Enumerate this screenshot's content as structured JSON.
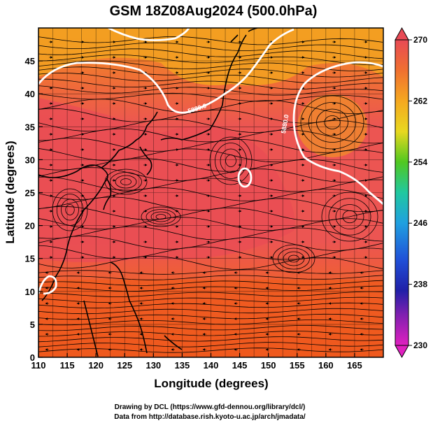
{
  "title": "GSM 18Z08Aug2024 (500.0hPa)",
  "xlabel": "Longitude (degrees)",
  "ylabel": "Latitude  (degrees)",
  "x_ticks": [
    "110",
    "115",
    "120",
    "125",
    "130",
    "135",
    "140",
    "145",
    "150",
    "155",
    "160",
    "165"
  ],
  "y_ticks": [
    "0",
    "5",
    "10",
    "15",
    "20",
    "25",
    "30",
    "35",
    "40",
    "45"
  ],
  "colorbar": {
    "ticks": [
      "270",
      "262",
      "254",
      "246",
      "238",
      "230"
    ],
    "min": 230,
    "max": 270
  },
  "contour_labels": [
    "5880.0",
    "5880.0"
  ],
  "credits": {
    "line1": "Drawing by DCL (https://www.gfd-dennou.org/library/dcl/)",
    "line2": "Data from http://database.rish.kyoto-u.ac.jp/arch/jmadata/"
  },
  "colors": {
    "field_main": "#ee5a4c",
    "field_warm_band": "#f05f3a",
    "field_tropics": "#ef5a1c",
    "field_north": "#f6a21e",
    "contour": "#ffffff",
    "streamline": "#000000"
  }
}
